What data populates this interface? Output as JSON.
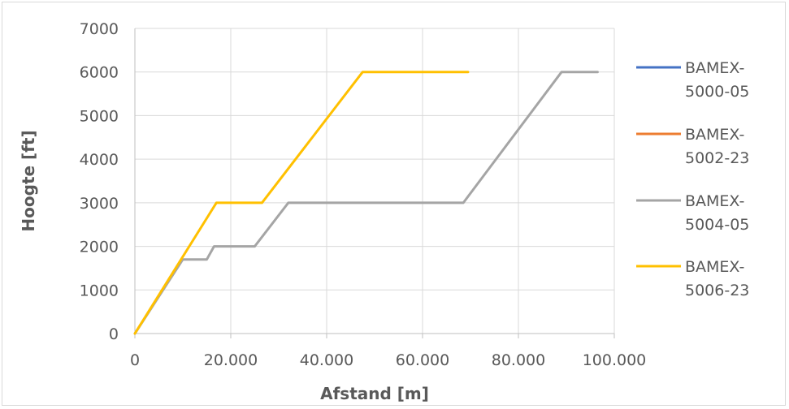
{
  "chart_data": {
    "type": "line",
    "title": "",
    "xlabel": "Afstand [m]",
    "ylabel": "Hoogte [ft]",
    "xlim": [
      0,
      100000
    ],
    "ylim": [
      0,
      7000
    ],
    "x_ticks": [
      0,
      20000,
      40000,
      60000,
      80000,
      100000
    ],
    "x_tick_labels": [
      "0",
      "20.000",
      "40.000",
      "60.000",
      "80.000",
      "100.000"
    ],
    "y_ticks": [
      0,
      1000,
      2000,
      3000,
      4000,
      5000,
      6000,
      7000
    ],
    "y_tick_labels": [
      "0",
      "1000",
      "2000",
      "3000",
      "4000",
      "5000",
      "6000",
      "7000"
    ],
    "grid": true,
    "legend_position": "right",
    "series": [
      {
        "name": "BAMEX-5000-05",
        "legend_lines": [
          "BAMEX-",
          "5000-05"
        ],
        "color": "#4472c4",
        "points": []
      },
      {
        "name": "BAMEX-5002-23",
        "legend_lines": [
          "BAMEX-",
          "5002-23"
        ],
        "color": "#ed7d31",
        "points": []
      },
      {
        "name": "BAMEX-5004-05",
        "legend_lines": [
          "BAMEX-",
          "5004-05"
        ],
        "color": "#a5a5a5",
        "points": [
          [
            0,
            0
          ],
          [
            10000,
            1700
          ],
          [
            15000,
            1700
          ],
          [
            16500,
            2000
          ],
          [
            25000,
            2000
          ],
          [
            32000,
            3000
          ],
          [
            68500,
            3000
          ],
          [
            89000,
            6000
          ],
          [
            96500,
            6000
          ]
        ]
      },
      {
        "name": "BAMEX-5006-23",
        "legend_lines": [
          "BAMEX-",
          "5006-23"
        ],
        "color": "#ffc000",
        "points": [
          [
            0,
            0
          ],
          [
            17000,
            3000
          ],
          [
            26500,
            3000
          ],
          [
            47500,
            6000
          ],
          [
            69500,
            6000
          ]
        ]
      }
    ]
  }
}
